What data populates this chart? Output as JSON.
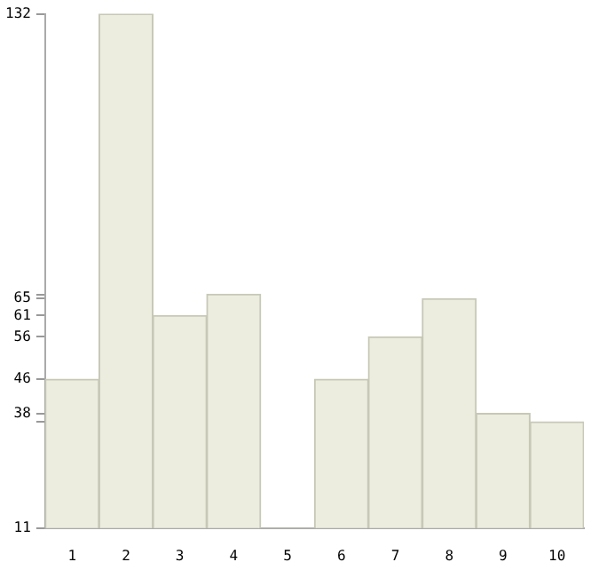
{
  "chart_data": {
    "type": "bar",
    "categories": [
      "1",
      "2",
      "3",
      "4",
      "5",
      "6",
      "7",
      "8",
      "9",
      "10"
    ],
    "values": [
      46,
      132,
      61,
      66,
      11,
      46,
      56,
      65,
      38,
      36
    ],
    "color": "#ecedde",
    "ylim": [
      11,
      132
    ],
    "yticks": [
      11,
      {
        "value": 36,
        "label": null
      },
      38,
      46,
      56,
      61,
      65,
      {
        "value": 66,
        "label": null
      },
      132
    ],
    "grid": false
  }
}
